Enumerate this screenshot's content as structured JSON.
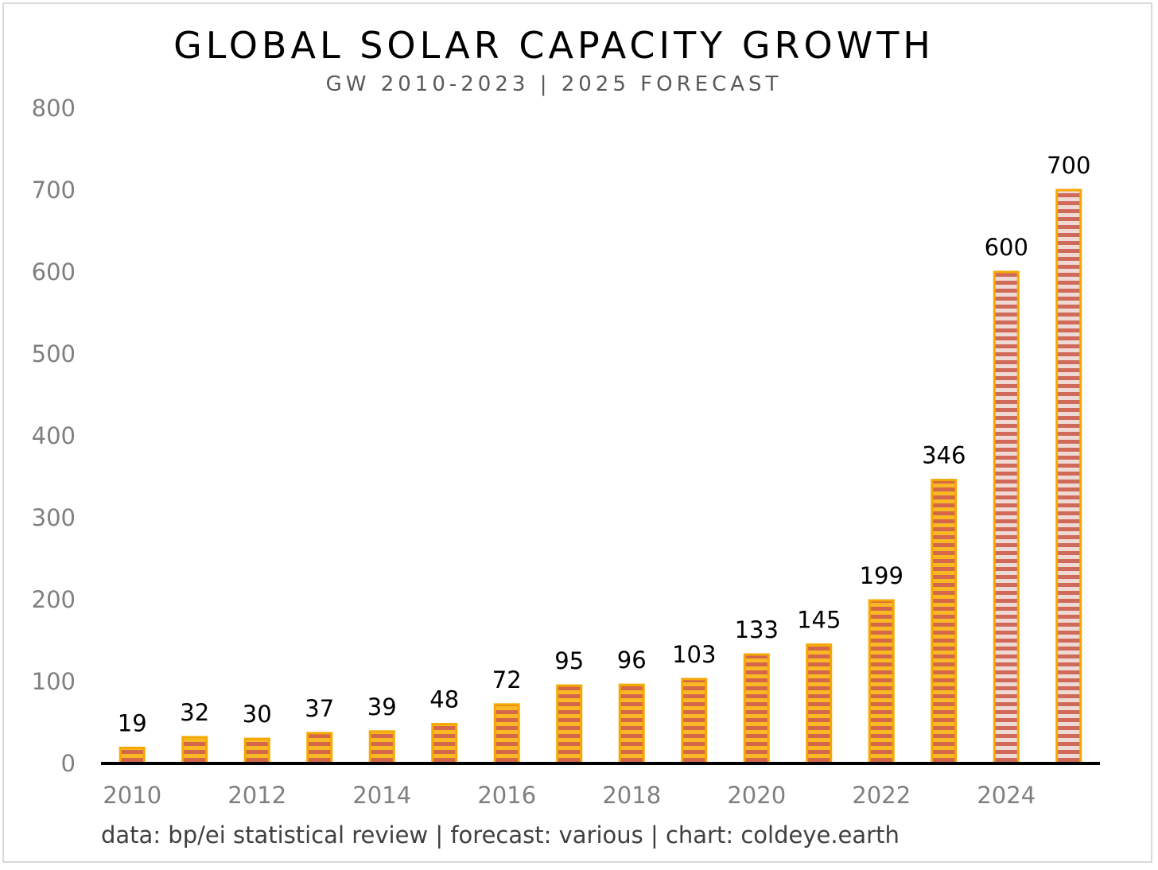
{
  "chart_data": {
    "type": "bar",
    "title": "GLOBAL SOLAR CAPACITY GROWTH",
    "subtitle": "GW 2010-2023 | 2025 FORECAST",
    "source": "data: bp/ei statistical review | forecast: various | chart: coldeye.earth",
    "xlabel": "",
    "ylabel": "",
    "categories": [
      "2010",
      "2011",
      "2012",
      "2013",
      "2014",
      "2015",
      "2016",
      "2017",
      "2018",
      "2019",
      "2020",
      "2021",
      "2022",
      "2023",
      "2024",
      "2025"
    ],
    "values": [
      19,
      32,
      30,
      37,
      39,
      48,
      72,
      95,
      96,
      103,
      133,
      145,
      199,
      346,
      600,
      700
    ],
    "data_labels": [
      "19",
      "32",
      "30",
      "37",
      "39",
      "48",
      "72",
      "95",
      "96",
      "103",
      "133",
      "145",
      "199",
      "346",
      "600",
      "700"
    ],
    "forecast_categories": [
      "2024",
      "2025"
    ],
    "xtick_labels": [
      "2010",
      "2012",
      "2014",
      "2016",
      "2018",
      "2020",
      "2022",
      "2024"
    ],
    "ytick_labels": [
      "0",
      "100",
      "200",
      "300",
      "400",
      "500",
      "600",
      "700",
      "800"
    ],
    "yticks": [
      0,
      100,
      200,
      300,
      400,
      500,
      600,
      700,
      800
    ],
    "ylim": [
      0,
      800
    ],
    "grid": false,
    "legend": "none",
    "colors": {
      "bar_border": "#f5a800",
      "bar_fill_light": "#f9b924",
      "bar_stripe": "#d4664a",
      "forecast_fill_light": "#efd9d4",
      "forecast_stripe": "#cf6a5a",
      "axis": "#000000"
    }
  }
}
